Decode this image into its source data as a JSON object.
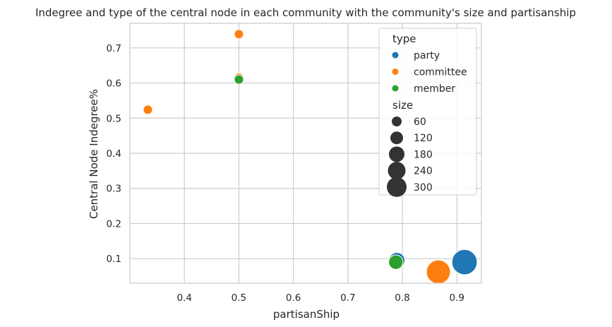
{
  "chart_data": {
    "type": "scatter",
    "title": "Indegree and type of the central node in each community with the community's size and partisanship",
    "xlabel": "partisanShip",
    "ylabel": "Central Node Indegree%",
    "xlim": [
      0.3,
      0.945
    ],
    "ylim": [
      0.03,
      0.77
    ],
    "xticks": [
      0.4,
      0.5,
      0.6,
      0.7,
      0.8,
      0.9
    ],
    "xtick_labels": [
      "0.4",
      "0.5",
      "0.6",
      "0.7",
      "0.8",
      "0.9"
    ],
    "yticks": [
      0.1,
      0.2,
      0.3,
      0.4,
      0.5,
      0.6,
      0.7
    ],
    "ytick_labels": [
      "0.1",
      "0.2",
      "0.3",
      "0.4",
      "0.5",
      "0.6",
      "0.7"
    ],
    "grid": true,
    "legend": {
      "placement": "upper-right",
      "hue_title": "type",
      "size_title": "size",
      "types": [
        {
          "name": "party",
          "color": "#1f77b4"
        },
        {
          "name": "committee",
          "color": "#ff7f0e"
        },
        {
          "name": "member",
          "color": "#2ca02c"
        }
      ],
      "sizes": [
        {
          "label": "60",
          "value": 60
        },
        {
          "label": "120",
          "value": 120
        },
        {
          "label": "180",
          "value": 180
        },
        {
          "label": "240",
          "value": 240
        },
        {
          "label": "300",
          "value": 300
        }
      ]
    },
    "points": [
      {
        "x": 0.333,
        "y": 0.524,
        "type": "committee",
        "size": 10
      },
      {
        "x": 0.5,
        "y": 0.739,
        "type": "committee",
        "size": 10
      },
      {
        "x": 0.5,
        "y": 0.615,
        "type": "committee",
        "size": 10
      },
      {
        "x": 0.5,
        "y": 0.61,
        "type": "member",
        "size": 10
      },
      {
        "x": 0.79,
        "y": 0.095,
        "type": "party",
        "size": 80
      },
      {
        "x": 0.788,
        "y": 0.09,
        "type": "member",
        "size": 60
      },
      {
        "x": 0.866,
        "y": 0.062,
        "type": "committee",
        "size": 260
      },
      {
        "x": 0.914,
        "y": 0.09,
        "type": "party",
        "size": 300
      }
    ]
  }
}
